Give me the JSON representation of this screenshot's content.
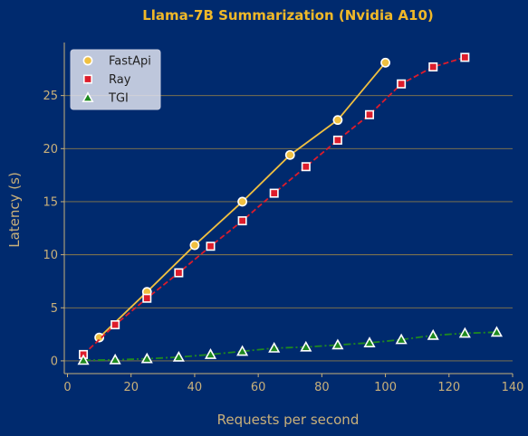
{
  "colors": {
    "background": "#002a6e",
    "title": "#f0b828",
    "axis_text": "#c9b07a",
    "grid": "#8c7a4a",
    "fastapi": "#f0c040",
    "ray": "#dd1c2b",
    "tgi": "#1f8a1f"
  },
  "chart_data": {
    "type": "line",
    "title": "Llama-7B Summarization (Nvidia A10)",
    "xlabel": "Requests per second",
    "ylabel": "Latency (s)",
    "xlim": [
      -1,
      140
    ],
    "ylim": [
      -1.2,
      30
    ],
    "xticks": [
      "0",
      "20",
      "40",
      "60",
      "80",
      "100",
      "120",
      "140"
    ],
    "yticks": [
      "0",
      "5",
      "10",
      "15",
      "20",
      "25"
    ],
    "grid": "horizontal",
    "legend_position": "top-left",
    "series": [
      {
        "name": "FastApi",
        "marker": "circle",
        "line": "solid",
        "color": "#f0c040",
        "x": [
          10,
          25,
          40,
          55,
          70,
          85,
          100
        ],
        "y": [
          2.2,
          6.5,
          10.9,
          15.0,
          19.4,
          22.7,
          28.1
        ]
      },
      {
        "name": "Ray",
        "marker": "square",
        "line": "dashed",
        "color": "#dd1c2b",
        "x": [
          5,
          15,
          25,
          35,
          45,
          55,
          65,
          75,
          85,
          95,
          105,
          115,
          125
        ],
        "y": [
          0.6,
          3.4,
          5.9,
          8.3,
          10.8,
          13.2,
          15.8,
          18.3,
          20.8,
          23.2,
          26.1,
          27.7,
          28.6
        ]
      },
      {
        "name": "TGI",
        "marker": "triangle",
        "line": "dashdot",
        "color": "#1f8a1f",
        "x": [
          5,
          15,
          25,
          35,
          45,
          55,
          65,
          75,
          85,
          95,
          105,
          115,
          125,
          135
        ],
        "y": [
          0.05,
          0.1,
          0.2,
          0.35,
          0.6,
          0.9,
          1.2,
          1.3,
          1.5,
          1.7,
          2.0,
          2.4,
          2.6,
          2.7
        ]
      }
    ]
  }
}
